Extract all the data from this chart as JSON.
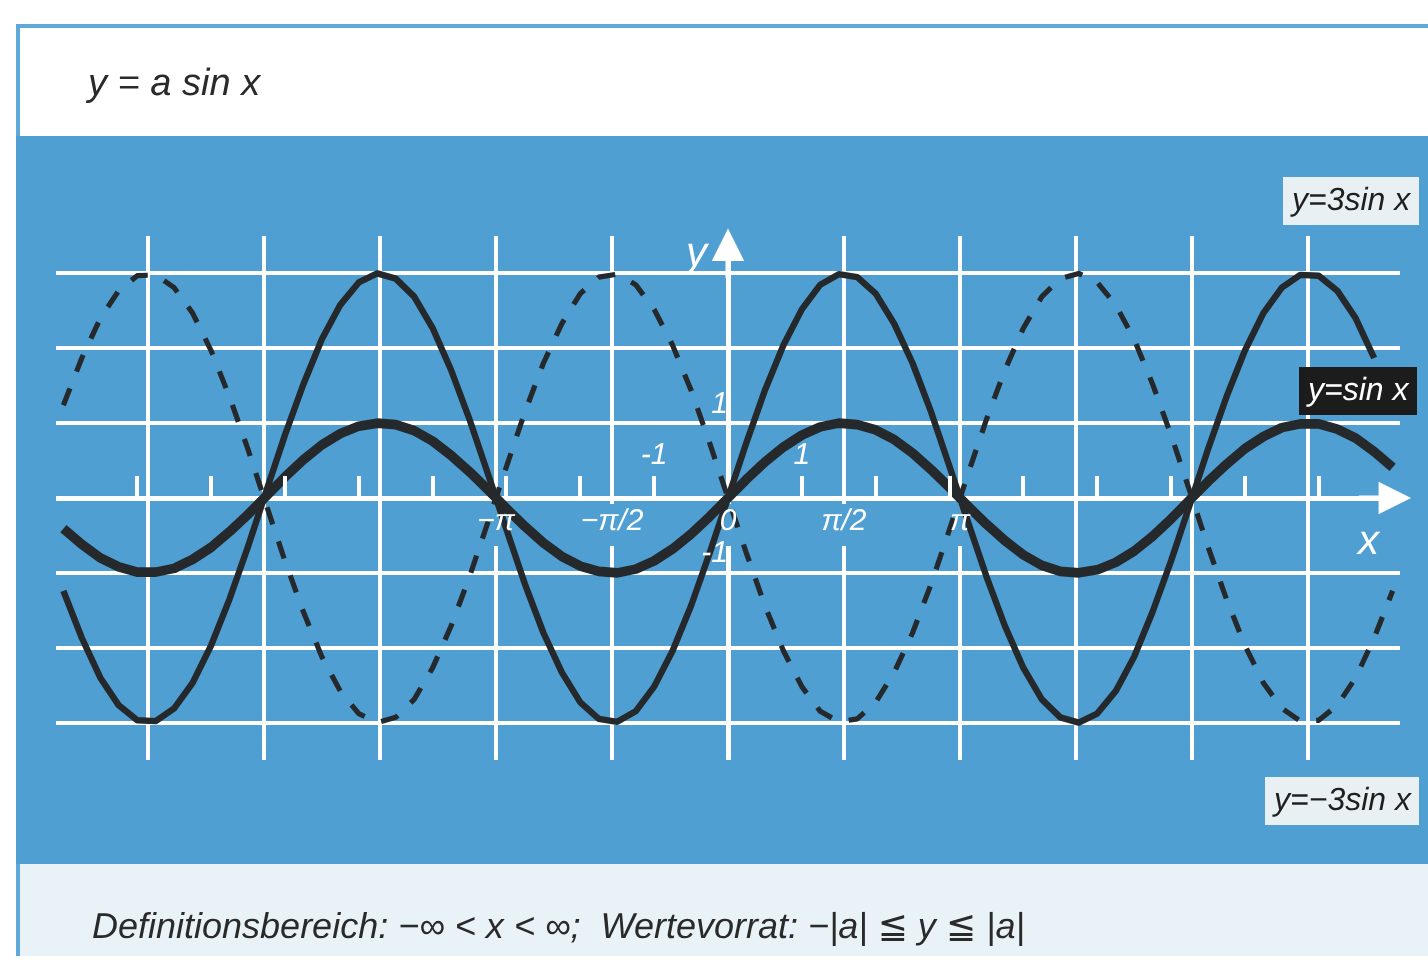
{
  "chart_data": {
    "type": "line",
    "title": "y = a sin x",
    "xlabel": "x",
    "ylabel": "y",
    "annotations": [
      "Definitionsbereich: −∞ < x < ∞;  Wertevorrat: −|a| ≦ y ≦ |a|"
    ],
    "x": [
      -9,
      -8.75,
      -8.5,
      -8.25,
      -8,
      -7.75,
      -7.5,
      -7.25,
      -7,
      -6.75,
      -6.5,
      -6.25,
      -6,
      -5.75,
      -5.5,
      -5.25,
      -5,
      -4.75,
      -4.5,
      -4.25,
      -4,
      -3.75,
      -3.5,
      -3.25,
      -3,
      -2.75,
      -2.5,
      -2.25,
      -2,
      -1.75,
      -1.5,
      -1.25,
      -1,
      -0.75,
      -0.5,
      -0.25,
      0,
      0.25,
      0.5,
      0.75,
      1,
      1.25,
      1.5,
      1.75,
      2,
      2.25,
      2.5,
      2.75,
      3,
      3.25,
      3.5,
      3.75,
      4,
      4.25,
      4.5,
      4.75,
      5,
      5.25,
      5.5,
      5.75,
      6,
      6.25,
      6.5,
      6.75,
      7,
      7.25,
      7.5,
      7.75,
      8,
      8.25,
      8.5,
      8.75,
      9
    ],
    "series": [
      {
        "name": "y=3sin x",
        "color": "#26292c",
        "values": [
          -1.24,
          -1.87,
          -2.4,
          -2.77,
          -2.97,
          -2.98,
          -2.81,
          -2.47,
          -1.97,
          -1.35,
          -0.65,
          0.1,
          0.84,
          1.52,
          2.12,
          2.58,
          2.88,
          3,
          2.93,
          2.69,
          2.27,
          1.71,
          1.05,
          0.32,
          -0.42,
          -1.15,
          -1.8,
          -2.33,
          -2.73,
          -2.95,
          -2.99,
          -2.85,
          -2.52,
          -2.04,
          -1.44,
          -0.74,
          0,
          0.74,
          1.44,
          2.04,
          2.52,
          2.85,
          2.99,
          2.95,
          2.73,
          2.33,
          1.8,
          1.15,
          0.42,
          -0.32,
          -1.05,
          -1.71,
          -2.27,
          -2.69,
          -2.93,
          -3,
          -2.88,
          -2.58,
          -2.12,
          -1.52,
          -0.84,
          -0.1,
          0.65,
          1.35,
          1.97,
          2.47,
          2.81,
          2.98,
          2.97,
          2.77,
          2.4,
          1.87,
          null
        ]
      },
      {
        "name": "y=sin x",
        "color": "#26292c",
        "values": [
          -0.41,
          -0.62,
          -0.8,
          -0.92,
          -0.99,
          -0.99,
          -0.94,
          -0.82,
          -0.66,
          -0.45,
          -0.22,
          0.03,
          0.28,
          0.51,
          0.71,
          0.86,
          0.96,
          1,
          0.98,
          0.9,
          0.76,
          0.57,
          0.35,
          0.11,
          -0.14,
          -0.38,
          -0.6,
          -0.78,
          -0.91,
          -0.98,
          -1,
          -0.95,
          -0.84,
          -0.68,
          -0.48,
          -0.25,
          0,
          0.25,
          0.48,
          0.68,
          0.84,
          0.95,
          1,
          0.98,
          0.91,
          0.78,
          0.6,
          0.38,
          0.14,
          -0.11,
          -0.35,
          -0.57,
          -0.76,
          -0.9,
          -0.98,
          -1,
          -0.96,
          -0.86,
          -0.71,
          -0.51,
          -0.28,
          -0.03,
          0.22,
          0.45,
          0.66,
          0.82,
          0.94,
          0.99,
          0.99,
          0.92,
          0.8,
          0.62,
          0.41
        ]
      },
      {
        "name": "y=−3sin x",
        "color": "#26292c",
        "line_style": "dashed",
        "values": [
          1.24,
          1.87,
          2.4,
          2.77,
          2.97,
          2.98,
          2.81,
          2.47,
          1.97,
          1.35,
          0.65,
          -0.1,
          -0.84,
          -1.52,
          -2.12,
          -2.58,
          -2.88,
          -3,
          -2.93,
          -2.69,
          -2.27,
          -1.71,
          -1.05,
          -0.32,
          0.42,
          1.15,
          1.8,
          2.33,
          2.73,
          2.95,
          2.99,
          2.85,
          2.52,
          2.04,
          1.44,
          0.74,
          0,
          -0.74,
          -1.44,
          -2.04,
          -2.52,
          -2.85,
          -2.99,
          -2.95,
          -2.73,
          -2.33,
          -1.8,
          -1.15,
          -0.42,
          0.32,
          1.05,
          1.71,
          2.27,
          2.69,
          2.93,
          3,
          2.88,
          2.58,
          2.12,
          1.52,
          0.84,
          0.1,
          -0.65,
          -1.35,
          -1.97,
          -2.47,
          -2.81,
          -2.98,
          -2.97,
          -2.77,
          -2.4,
          -1.87,
          -1.24
        ]
      }
    ],
    "xlim": [
      -9.1,
      9.1
    ],
    "ylim": [
      -3.5,
      3.5
    ],
    "xticks": [
      {
        "value": -7.854,
        "label": null
      },
      {
        "value": -6.2832,
        "label": null
      },
      {
        "value": -4.7124,
        "label": null
      },
      {
        "value": -3.1416,
        "label": "−π"
      },
      {
        "value": -1.5708,
        "label": "−π/2"
      },
      0,
      {
        "value": 1.5708,
        "label": "π/2"
      },
      {
        "value": 3.1416,
        "label": "π"
      },
      {
        "value": 4.7124,
        "label": null
      },
      {
        "value": 6.2832,
        "label": null
      },
      {
        "value": 7.854,
        "label": null
      }
    ],
    "x2lim": [
      -9.1,
      9.1
    ],
    "x2ticks": [
      {
        "value": -8,
        "label": null
      },
      {
        "value": -7,
        "label": null
      },
      {
        "value": -6,
        "label": null
      },
      {
        "value": -5,
        "label": null
      },
      {
        "value": -4,
        "label": null
      },
      {
        "value": -3,
        "label": null
      },
      {
        "value": -2,
        "label": null
      },
      -1,
      1,
      {
        "value": 2,
        "label": null
      },
      {
        "value": 3,
        "label": null
      },
      {
        "value": 4,
        "label": null
      },
      {
        "value": 5,
        "label": null
      },
      {
        "value": 6,
        "label": null
      },
      {
        "value": 7,
        "label": null
      },
      {
        "value": 8,
        "label": null
      }
    ],
    "yticks": [
      {
        "value": -3,
        "label": null
      },
      {
        "value": -2,
        "label": null
      },
      -1,
      {
        "value": 0,
        "label": null
      },
      1,
      {
        "value": 2,
        "label": null
      },
      {
        "value": 3,
        "label": null
      }
    ],
    "grid": true,
    "legend": false,
    "marker": "none",
    "line_style": "solid"
  }
}
